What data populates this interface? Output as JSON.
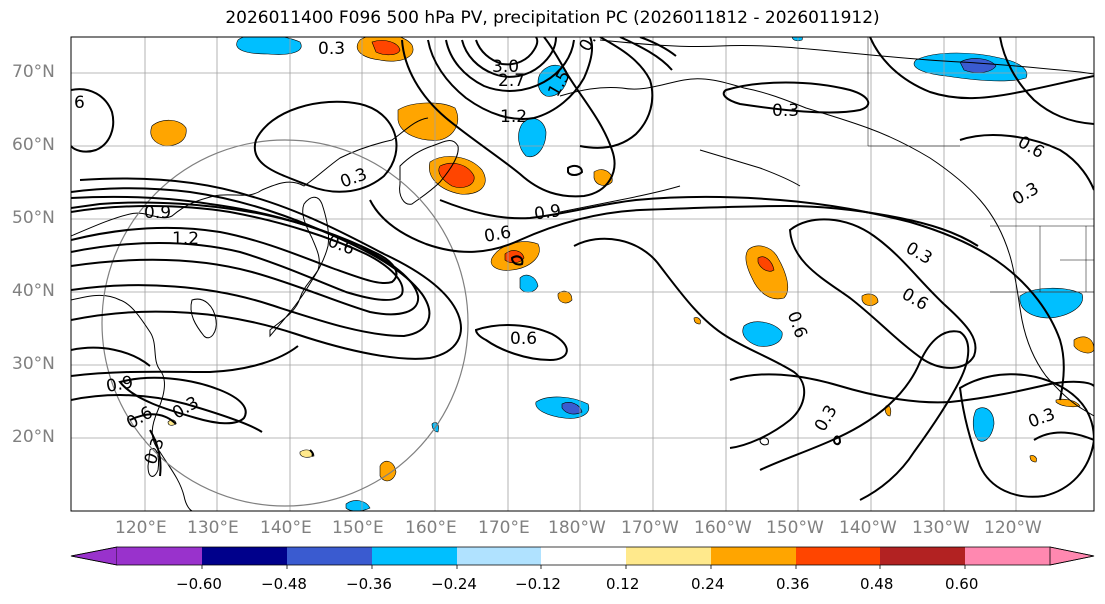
{
  "title": "2026011400 F096 500 hPa PV, precipitation PC (2026011812 - 2026011912)",
  "lat_labels": [
    "70°N",
    "60°N",
    "50°N",
    "40°N",
    "30°N",
    "20°N"
  ],
  "lon_labels": [
    "120°E",
    "130°E",
    "140°E",
    "150°E",
    "160°E",
    "170°E",
    "180°W",
    "170°W",
    "160°W",
    "150°W",
    "140°W",
    "130°W",
    "120°W"
  ],
  "contour_labels": [
    "0.3",
    "3.0",
    "2.7",
    "1.5",
    "1.2",
    "0.3",
    "6",
    "0.9",
    "1.2",
    "0.6",
    "0.3",
    "0.6",
    "0.9",
    "0.6",
    "0.6",
    "0.3",
    "0.6",
    "0.3",
    "0.6",
    "0.9",
    "0.6",
    "0.3",
    "0.3",
    "0.3",
    "0.6",
    "0.3"
  ],
  "colorbar": {
    "ticks": [
      "−0.60",
      "−0.48",
      "−0.36",
      "−0.24",
      "−0.12",
      "0.12",
      "0.24",
      "0.36",
      "0.48",
      "0.60"
    ],
    "colors": [
      "#9932cc",
      "#00008b",
      "#3a5bd0",
      "#00bfff",
      "#b0e2ff",
      "#ffffff",
      "#ffe98c",
      "#ffa500",
      "#ff4500",
      "#b22222",
      "#ff88b0"
    ]
  },
  "colors": {
    "contour": "#000000",
    "graticule": "#a0a0a0",
    "circle": "#808080",
    "axis_text": "#808080"
  }
}
